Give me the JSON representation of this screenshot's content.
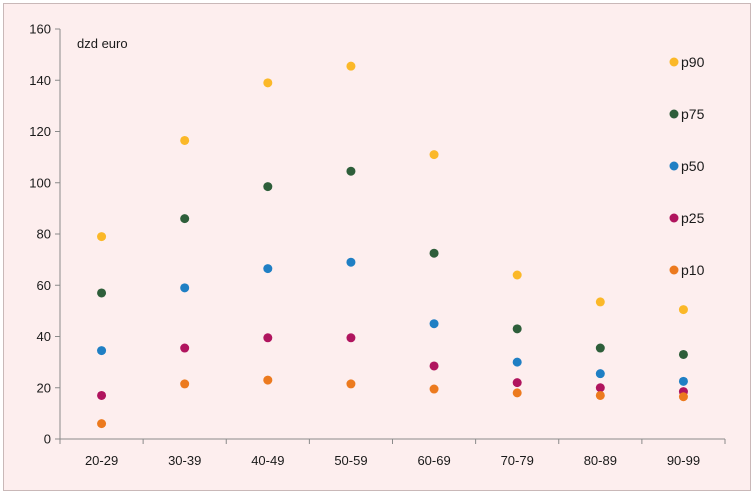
{
  "chart_data": {
    "type": "scatter",
    "unit_label": "dzd euro",
    "categories": [
      "20-29",
      "30-39",
      "40-49",
      "50-59",
      "60-69",
      "70-79",
      "80-89",
      "90-99"
    ],
    "ylim": [
      0,
      160
    ],
    "yticks": [
      0,
      20,
      40,
      60,
      80,
      100,
      120,
      140,
      160
    ],
    "grid": false,
    "legend_position": "right",
    "series": [
      {
        "name": "p90",
        "color": "#fbb828",
        "values": [
          79,
          116.5,
          139,
          145.5,
          111,
          64,
          53.5,
          50.5
        ]
      },
      {
        "name": "p75",
        "color": "#2e5e3a",
        "values": [
          57,
          86,
          98.5,
          104.5,
          72.5,
          43,
          35.5,
          33
        ]
      },
      {
        "name": "p50",
        "color": "#1f7fc4",
        "values": [
          34.5,
          59,
          66.5,
          69,
          45,
          30,
          25.5,
          22.5
        ]
      },
      {
        "name": "p25",
        "color": "#b0145e",
        "values": [
          17,
          35.5,
          39.5,
          39.5,
          28.5,
          22,
          20,
          18.5
        ]
      },
      {
        "name": "p10",
        "color": "#ec7a1e",
        "values": [
          6,
          21.5,
          23,
          21.5,
          19.5,
          18,
          17,
          16.5
        ]
      }
    ]
  }
}
